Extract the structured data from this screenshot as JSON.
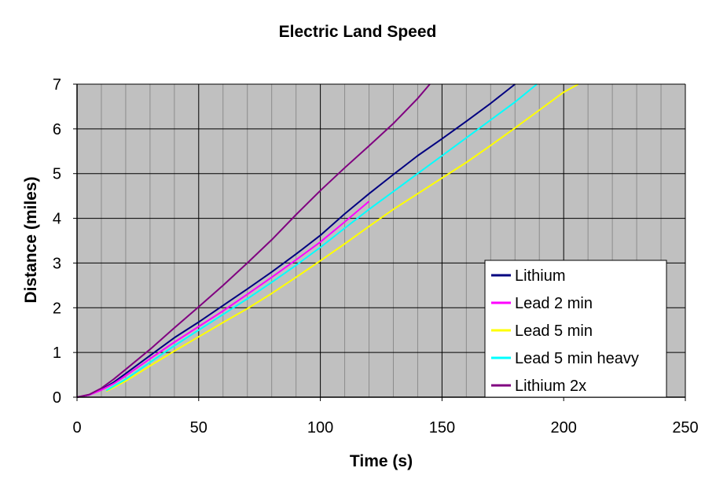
{
  "chart_data": {
    "type": "line",
    "title": "Electric Land Speed",
    "xlabel": "Time (s)",
    "ylabel": "Distance (miles)",
    "xlim": [
      0,
      250
    ],
    "ylim": [
      0,
      7
    ],
    "x_ticks": [
      "0",
      "50",
      "100",
      "150",
      "200",
      "250"
    ],
    "y_ticks": [
      "0",
      "1",
      "2",
      "3",
      "4",
      "5",
      "6",
      "7"
    ],
    "grid": "on",
    "plot_background": "#c0c0c0",
    "legend_position": "lower-right",
    "series": [
      {
        "name": "Lithium",
        "color": "#000080",
        "points": [
          [
            0,
            0
          ],
          [
            5,
            0.05
          ],
          [
            10,
            0.17
          ],
          [
            15,
            0.33
          ],
          [
            20,
            0.53
          ],
          [
            30,
            0.93
          ],
          [
            40,
            1.33
          ],
          [
            50,
            1.68
          ],
          [
            60,
            2.05
          ],
          [
            70,
            2.42
          ],
          [
            80,
            2.8
          ],
          [
            90,
            3.2
          ],
          [
            100,
            3.62
          ],
          [
            110,
            4.1
          ],
          [
            120,
            4.55
          ],
          [
            130,
            4.98
          ],
          [
            140,
            5.4
          ],
          [
            150,
            5.78
          ],
          [
            160,
            6.17
          ],
          [
            170,
            6.57
          ],
          [
            180,
            7.0
          ]
        ]
      },
      {
        "name": "Lead 2 min",
        "color": "#ff00ff",
        "points": [
          [
            0,
            0
          ],
          [
            5,
            0.05
          ],
          [
            10,
            0.16
          ],
          [
            15,
            0.3
          ],
          [
            20,
            0.48
          ],
          [
            30,
            0.86
          ],
          [
            40,
            1.23
          ],
          [
            50,
            1.58
          ],
          [
            60,
            1.93
          ],
          [
            70,
            2.3
          ],
          [
            80,
            2.68
          ],
          [
            90,
            3.07
          ],
          [
            100,
            3.47
          ],
          [
            110,
            3.92
          ],
          [
            120,
            4.38
          ]
        ]
      },
      {
        "name": "Lead 5 min",
        "color": "#ffff00",
        "points": [
          [
            12,
            0.13
          ],
          [
            20,
            0.36
          ],
          [
            30,
            0.7
          ],
          [
            40,
            1.03
          ],
          [
            50,
            1.35
          ],
          [
            60,
            1.67
          ],
          [
            70,
            1.98
          ],
          [
            80,
            2.32
          ],
          [
            90,
            2.68
          ],
          [
            100,
            3.05
          ],
          [
            110,
            3.43
          ],
          [
            120,
            3.82
          ],
          [
            130,
            4.2
          ],
          [
            140,
            4.55
          ],
          [
            150,
            4.9
          ],
          [
            160,
            5.25
          ],
          [
            170,
            5.63
          ],
          [
            180,
            6.02
          ],
          [
            190,
            6.42
          ],
          [
            200,
            6.82
          ],
          [
            206,
            7.0
          ]
        ]
      },
      {
        "name": "Lead 5 min heavy",
        "color": "#00ffff",
        "points": [
          [
            12,
            0.15
          ],
          [
            20,
            0.4
          ],
          [
            30,
            0.78
          ],
          [
            40,
            1.15
          ],
          [
            50,
            1.5
          ],
          [
            60,
            1.85
          ],
          [
            70,
            2.2
          ],
          [
            80,
            2.57
          ],
          [
            90,
            2.95
          ],
          [
            100,
            3.35
          ],
          [
            110,
            3.78
          ],
          [
            120,
            4.2
          ],
          [
            130,
            4.6
          ],
          [
            140,
            5.0
          ],
          [
            150,
            5.4
          ],
          [
            160,
            5.8
          ],
          [
            170,
            6.2
          ],
          [
            180,
            6.6
          ],
          [
            189,
            7.0
          ]
        ]
      },
      {
        "name": "Lithium 2x",
        "color": "#800080",
        "points": [
          [
            0,
            0
          ],
          [
            5,
            0.06
          ],
          [
            10,
            0.2
          ],
          [
            15,
            0.4
          ],
          [
            20,
            0.62
          ],
          [
            30,
            1.07
          ],
          [
            40,
            1.55
          ],
          [
            50,
            2.02
          ],
          [
            60,
            2.5
          ],
          [
            70,
            3.0
          ],
          [
            80,
            3.52
          ],
          [
            90,
            4.08
          ],
          [
            100,
            4.62
          ],
          [
            110,
            5.13
          ],
          [
            120,
            5.62
          ],
          [
            130,
            6.12
          ],
          [
            140,
            6.68
          ],
          [
            145,
            7.0
          ]
        ]
      }
    ]
  }
}
